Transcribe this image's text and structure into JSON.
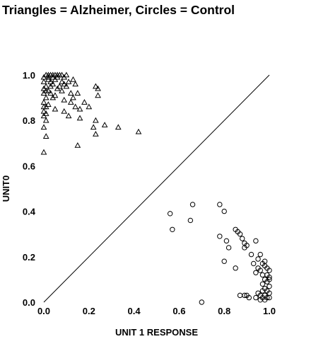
{
  "chart_data": {
    "type": "scatter",
    "title": "Triangles = Alzheimer, Circles = Control",
    "xlabel": "UNIT 1 RESPONSE",
    "ylabel": "UNIT0",
    "xlim": [
      0,
      1
    ],
    "ylim": [
      0,
      1
    ],
    "xticks": [
      "0.0",
      "0.2",
      "0.4",
      "0.6",
      "0.8",
      "1.0"
    ],
    "yticks": [
      "0.0",
      "0.2",
      "0.4",
      "0.6",
      "0.8",
      "1.0"
    ],
    "diagonal_line": true,
    "grid": false,
    "series": [
      {
        "name": "Alzheimer",
        "marker": "triangle",
        "points": [
          [
            0.0,
            0.99
          ],
          [
            0.01,
            1.0
          ],
          [
            0.02,
            1.0
          ],
          [
            0.03,
            1.0
          ],
          [
            0.04,
            1.0
          ],
          [
            0.05,
            1.0
          ],
          [
            0.06,
            1.0
          ],
          [
            0.07,
            1.0
          ],
          [
            0.08,
            1.0
          ],
          [
            0.1,
            1.0
          ],
          [
            0.02,
            0.99
          ],
          [
            0.04,
            0.99
          ],
          [
            0.06,
            0.99
          ],
          [
            0.09,
            0.99
          ],
          [
            0.13,
            0.98
          ],
          [
            0.0,
            0.97
          ],
          [
            0.02,
            0.98
          ],
          [
            0.03,
            0.97
          ],
          [
            0.05,
            0.98
          ],
          [
            0.08,
            0.97
          ],
          [
            0.11,
            0.97
          ],
          [
            0.01,
            0.95
          ],
          [
            0.03,
            0.95
          ],
          [
            0.04,
            0.96
          ],
          [
            0.07,
            0.95
          ],
          [
            0.09,
            0.96
          ],
          [
            0.1,
            0.95
          ],
          [
            0.14,
            0.96
          ],
          [
            0.0,
            0.94
          ],
          [
            0.02,
            0.93
          ],
          [
            0.06,
            0.94
          ],
          [
            0.08,
            0.93
          ],
          [
            0.23,
            0.95
          ],
          [
            0.24,
            0.94
          ],
          [
            0.0,
            0.92
          ],
          [
            0.01,
            0.93
          ],
          [
            0.03,
            0.92
          ],
          [
            0.05,
            0.91
          ],
          [
            0.12,
            0.92
          ],
          [
            0.15,
            0.92
          ],
          [
            0.01,
            0.9
          ],
          [
            0.04,
            0.9
          ],
          [
            0.09,
            0.89
          ],
          [
            0.13,
            0.9
          ],
          [
            0.24,
            0.91
          ],
          [
            0.0,
            0.88
          ],
          [
            0.02,
            0.87
          ],
          [
            0.12,
            0.88
          ],
          [
            0.18,
            0.88
          ],
          [
            0.2,
            0.86
          ],
          [
            0.0,
            0.86
          ],
          [
            0.01,
            0.86
          ],
          [
            0.05,
            0.85
          ],
          [
            0.09,
            0.84
          ],
          [
            0.14,
            0.86
          ],
          [
            0.16,
            0.85
          ],
          [
            0.0,
            0.84
          ],
          [
            0.01,
            0.83
          ],
          [
            0.0,
            0.82
          ],
          [
            0.01,
            0.8
          ],
          [
            0.11,
            0.82
          ],
          [
            0.16,
            0.81
          ],
          [
            0.23,
            0.8
          ],
          [
            0.27,
            0.78
          ],
          [
            0.0,
            0.77
          ],
          [
            0.22,
            0.77
          ],
          [
            0.33,
            0.77
          ],
          [
            0.23,
            0.74
          ],
          [
            0.42,
            0.75
          ],
          [
            0.01,
            0.73
          ],
          [
            0.15,
            0.69
          ],
          [
            0.0,
            0.66
          ]
        ]
      },
      {
        "name": "Control",
        "marker": "circle",
        "points": [
          [
            0.56,
            0.39
          ],
          [
            0.66,
            0.43
          ],
          [
            0.78,
            0.43
          ],
          [
            0.8,
            0.4
          ],
          [
            0.57,
            0.32
          ],
          [
            0.65,
            0.36
          ],
          [
            0.85,
            0.32
          ],
          [
            0.86,
            0.31
          ],
          [
            0.87,
            0.3
          ],
          [
            0.78,
            0.29
          ],
          [
            0.88,
            0.28
          ],
          [
            0.81,
            0.27
          ],
          [
            0.89,
            0.26
          ],
          [
            0.9,
            0.25
          ],
          [
            0.94,
            0.27
          ],
          [
            0.82,
            0.24
          ],
          [
            0.89,
            0.24
          ],
          [
            0.92,
            0.21
          ],
          [
            0.96,
            0.21
          ],
          [
            0.95,
            0.19
          ],
          [
            0.98,
            0.18
          ],
          [
            0.8,
            0.18
          ],
          [
            0.93,
            0.17
          ],
          [
            0.97,
            0.17
          ],
          [
            0.98,
            0.16
          ],
          [
            0.95,
            0.15
          ],
          [
            0.96,
            0.14
          ],
          [
            0.99,
            0.15
          ],
          [
            1.0,
            0.14
          ],
          [
            0.85,
            0.15
          ],
          [
            0.94,
            0.13
          ],
          [
            0.97,
            0.12
          ],
          [
            0.99,
            0.12
          ],
          [
            1.0,
            0.11
          ],
          [
            0.98,
            0.1
          ],
          [
            1.0,
            0.1
          ],
          [
            0.99,
            0.09
          ],
          [
            0.97,
            0.08
          ],
          [
            1.0,
            0.07
          ],
          [
            0.98,
            0.06
          ],
          [
            0.97,
            0.05
          ],
          [
            0.99,
            0.05
          ],
          [
            1.0,
            0.04
          ],
          [
            0.95,
            0.04
          ],
          [
            0.96,
            0.03
          ],
          [
            0.98,
            0.03
          ],
          [
            0.87,
            0.03
          ],
          [
            0.89,
            0.03
          ],
          [
            0.9,
            0.03
          ],
          [
            0.91,
            0.02
          ],
          [
            0.94,
            0.02
          ],
          [
            0.97,
            0.02
          ],
          [
            0.99,
            0.02
          ],
          [
            1.0,
            0.02
          ],
          [
            0.96,
            0.01
          ],
          [
            0.98,
            0.01
          ],
          [
            0.7,
            0.0
          ]
        ]
      }
    ]
  }
}
